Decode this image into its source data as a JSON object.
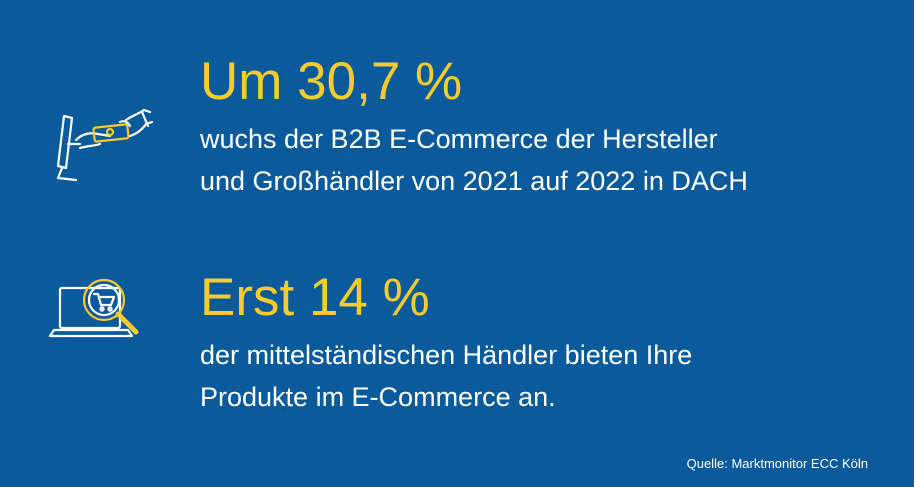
{
  "stats": [
    {
      "headline": "Um 30,7 %",
      "line1": "wuchs der B2B E-Commerce  der Hersteller",
      "line2": "und Großhändler von 2021 auf 2022 in DACH",
      "icon": "monitor-card-payment-icon"
    },
    {
      "headline": "Erst 14 %",
      "line1": "der mittelständischen Händler bieten Ihre",
      "line2": "Produkte im E-Commerce an.",
      "icon": "laptop-magnifier-cart-icon"
    }
  ],
  "source": "Quelle: Marktmonitor ECC Köln",
  "colors": {
    "background": "#0a5a9c",
    "accent": "#f5cc2b",
    "text": "#ffffff"
  }
}
